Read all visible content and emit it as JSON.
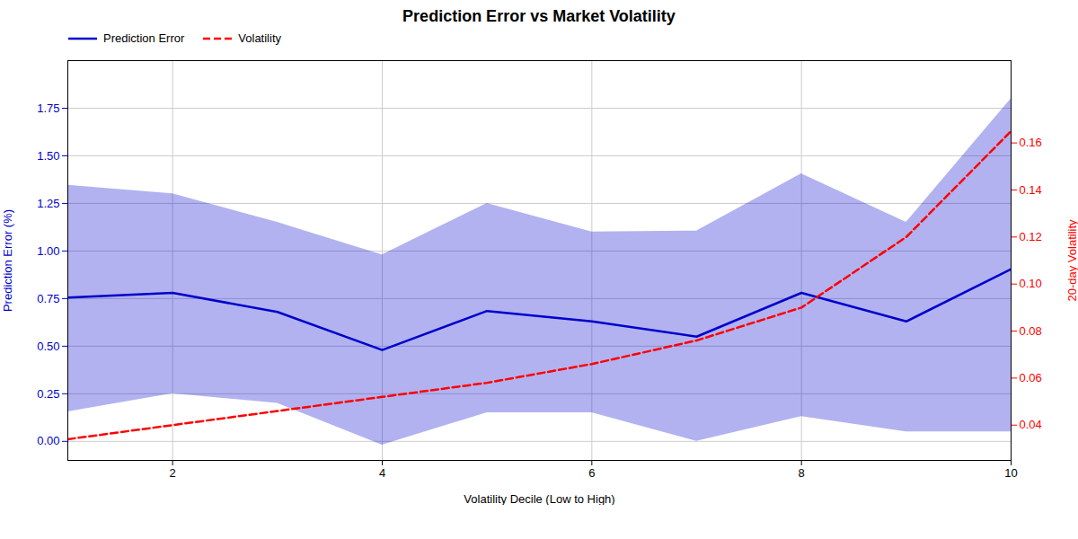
{
  "chart_data": {
    "type": "line",
    "title": "Prediction Error vs Market Volatility",
    "xlabel": "Volatility Decile (Low to High)",
    "ylabel": "Prediction Error (%)",
    "y2label": "20-day Volatility",
    "x": [
      1,
      2,
      3,
      4,
      5,
      6,
      7,
      8,
      9,
      10
    ],
    "series": [
      {
        "name": "Prediction Error",
        "color": "#0000cc",
        "line_style": "solid",
        "values": [
          0.755,
          0.78,
          0.68,
          0.48,
          0.685,
          0.63,
          0.55,
          0.78,
          0.63,
          0.905
        ],
        "upper_band": [
          1.345,
          1.3,
          1.15,
          0.98,
          1.25,
          1.1,
          1.105,
          1.405,
          1.15,
          1.8
        ],
        "lower_band": [
          0.155,
          0.25,
          0.2,
          -0.02,
          0.15,
          0.15,
          0.0,
          0.13,
          0.05,
          0.05
        ]
      },
      {
        "name": "Volatility",
        "color": "#ff0000",
        "line_style": "dashed",
        "axis": "y2",
        "values": [
          0.034,
          0.04,
          0.046,
          0.052,
          0.058,
          0.066,
          0.076,
          0.09,
          0.12,
          0.165
        ]
      }
    ],
    "xlim": [
      1,
      10
    ],
    "xticks": [
      2,
      4,
      6,
      8,
      10
    ],
    "ylim": [
      -0.1,
      2.0
    ],
    "yticks": [
      {
        "value": 0.0,
        "label": "0.00"
      },
      0.25,
      {
        "value": 0.5,
        "label": "0.50"
      },
      0.75,
      {
        "value": 1.0,
        "label": "1.00"
      },
      1.25,
      {
        "value": 1.5,
        "label": "1.50"
      },
      1.75
    ],
    "y2lim": [
      0.025,
      0.195
    ],
    "y2ticks": [
      0.04,
      0.06,
      0.08,
      {
        "value": 0.1,
        "label": "0.10"
      },
      0.12,
      0.14,
      0.16
    ],
    "grid": true,
    "legend": "upper left"
  }
}
